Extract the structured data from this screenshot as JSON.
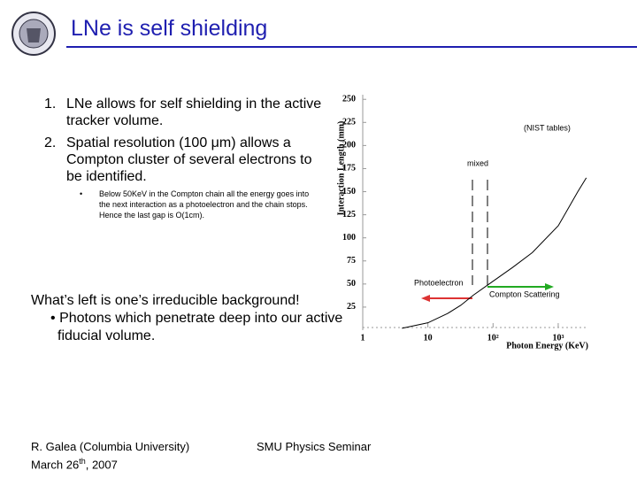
{
  "header": {
    "title": "LNe is self shielding"
  },
  "list": [
    {
      "number": "1.",
      "text": "LNe allows for self shielding in the active tracker volume."
    },
    {
      "number": "2.",
      "text": "Spatial resolution (100 μm) allows a Compton cluster of several electrons to be identified."
    }
  ],
  "sub_bullet": {
    "marker": "•",
    "text": "Below 50KeV in the Compton chain all the energy goes into the next interaction as a photoelectron and the chain stops. Hence the last gap is O(1cm)."
  },
  "remark": {
    "heading": "What’s left is one’s irreducible background!",
    "bullet": "•",
    "text": "Photons which penetrate deep into our active fiducial volume."
  },
  "footer": {
    "author": "R. Galea (Columbia University)",
    "date_prefix": "March 26",
    "date_sup": "th",
    "date_suffix": ", 2007",
    "event": "SMU Physics Seminar"
  },
  "chart_data": {
    "type": "line",
    "xlabel": "Photon Energy (KeV)",
    "ylabel": "Interaction Length (mm)",
    "source_note": "(NIST tables)",
    "region_labels": [
      "mixed",
      "Photoelectron",
      "Compton Scattering"
    ],
    "log_x": true,
    "xlim": [
      1,
      2900
    ],
    "ylim": [
      0,
      255
    ],
    "xticks": [
      1,
      10,
      {
        "value": 100,
        "label": "10²"
      },
      {
        "value": 1000,
        "label": "10³"
      }
    ],
    "yticks": [
      25,
      50,
      75,
      100,
      125,
      150,
      175,
      200,
      225,
      250
    ],
    "series": [
      {
        "color": "#000000",
        "x": [
          4,
          10,
          20,
          32,
          50,
          100,
          200,
          400,
          1000,
          2000,
          2700
        ],
        "values": [
          2,
          8,
          18,
          27,
          38,
          53,
          68,
          84,
          113,
          150,
          165
        ]
      }
    ]
  }
}
